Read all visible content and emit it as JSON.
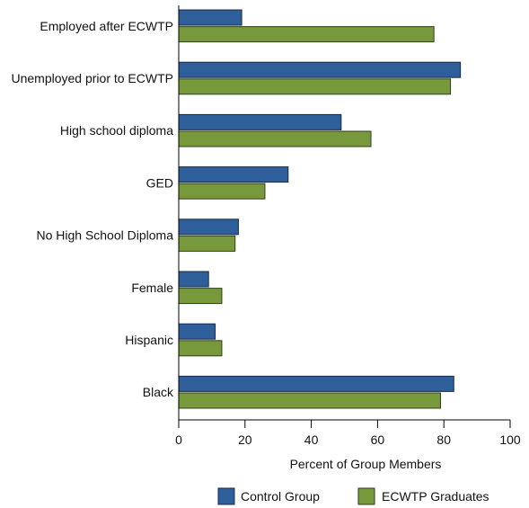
{
  "chart_data": {
    "type": "bar",
    "orientation": "horizontal",
    "categories": [
      "Employed after ECWTP",
      "Unemployed prior to ECWTP",
      "High school diploma",
      "GED",
      "No High School Diploma",
      "Female",
      "Hispanic",
      "Black"
    ],
    "series": [
      {
        "name": "Control Group",
        "color": "#2e5f9a",
        "values": [
          19,
          85,
          49,
          33,
          18,
          9,
          11,
          83
        ]
      },
      {
        "name": "ECWTP Graduates",
        "color": "#77993c",
        "values": [
          77,
          82,
          58,
          26,
          17,
          13,
          13,
          79
        ]
      }
    ],
    "xlabel": "Percent of Group Members",
    "xlim": [
      0,
      100
    ],
    "xticks": [
      0,
      20,
      40,
      60,
      80,
      100
    ],
    "grid": false,
    "legend_position": "bottom-center"
  }
}
